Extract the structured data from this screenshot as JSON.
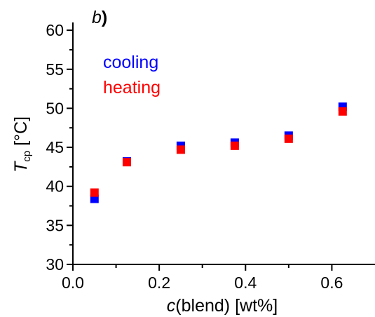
{
  "chart_data": {
    "type": "scatter",
    "panel_label": {
      "letter": "b",
      "paren": ")"
    },
    "xlabel": {
      "symbol": "c",
      "text": "(blend) [wt%]"
    },
    "ylabel": {
      "symbol": "T",
      "subscript": "cp",
      "unit": " [°C]"
    },
    "xlim": [
      0.0,
      0.7
    ],
    "ylim": [
      30,
      61
    ],
    "x_ticks": [
      "0.0",
      "0.2",
      "0.4",
      "0.6"
    ],
    "y_ticks": [
      "30",
      "35",
      "40",
      "45",
      "50",
      "55",
      "60"
    ],
    "grid": false,
    "legend_position": "top-left",
    "series": [
      {
        "name": "cooling",
        "color": "#0000ff",
        "points": [
          {
            "x": 0.05,
            "y": 38.4
          },
          {
            "x": 0.125,
            "y": 43.2
          },
          {
            "x": 0.25,
            "y": 45.2
          },
          {
            "x": 0.375,
            "y": 45.6
          },
          {
            "x": 0.5,
            "y": 46.5
          },
          {
            "x": 0.625,
            "y": 50.2
          }
        ]
      },
      {
        "name": "heating",
        "color": "#ff0000",
        "points": [
          {
            "x": 0.05,
            "y": 39.2
          },
          {
            "x": 0.125,
            "y": 43.1
          },
          {
            "x": 0.25,
            "y": 44.7
          },
          {
            "x": 0.375,
            "y": 45.2
          },
          {
            "x": 0.5,
            "y": 46.1
          },
          {
            "x": 0.625,
            "y": 49.6
          }
        ]
      }
    ]
  }
}
